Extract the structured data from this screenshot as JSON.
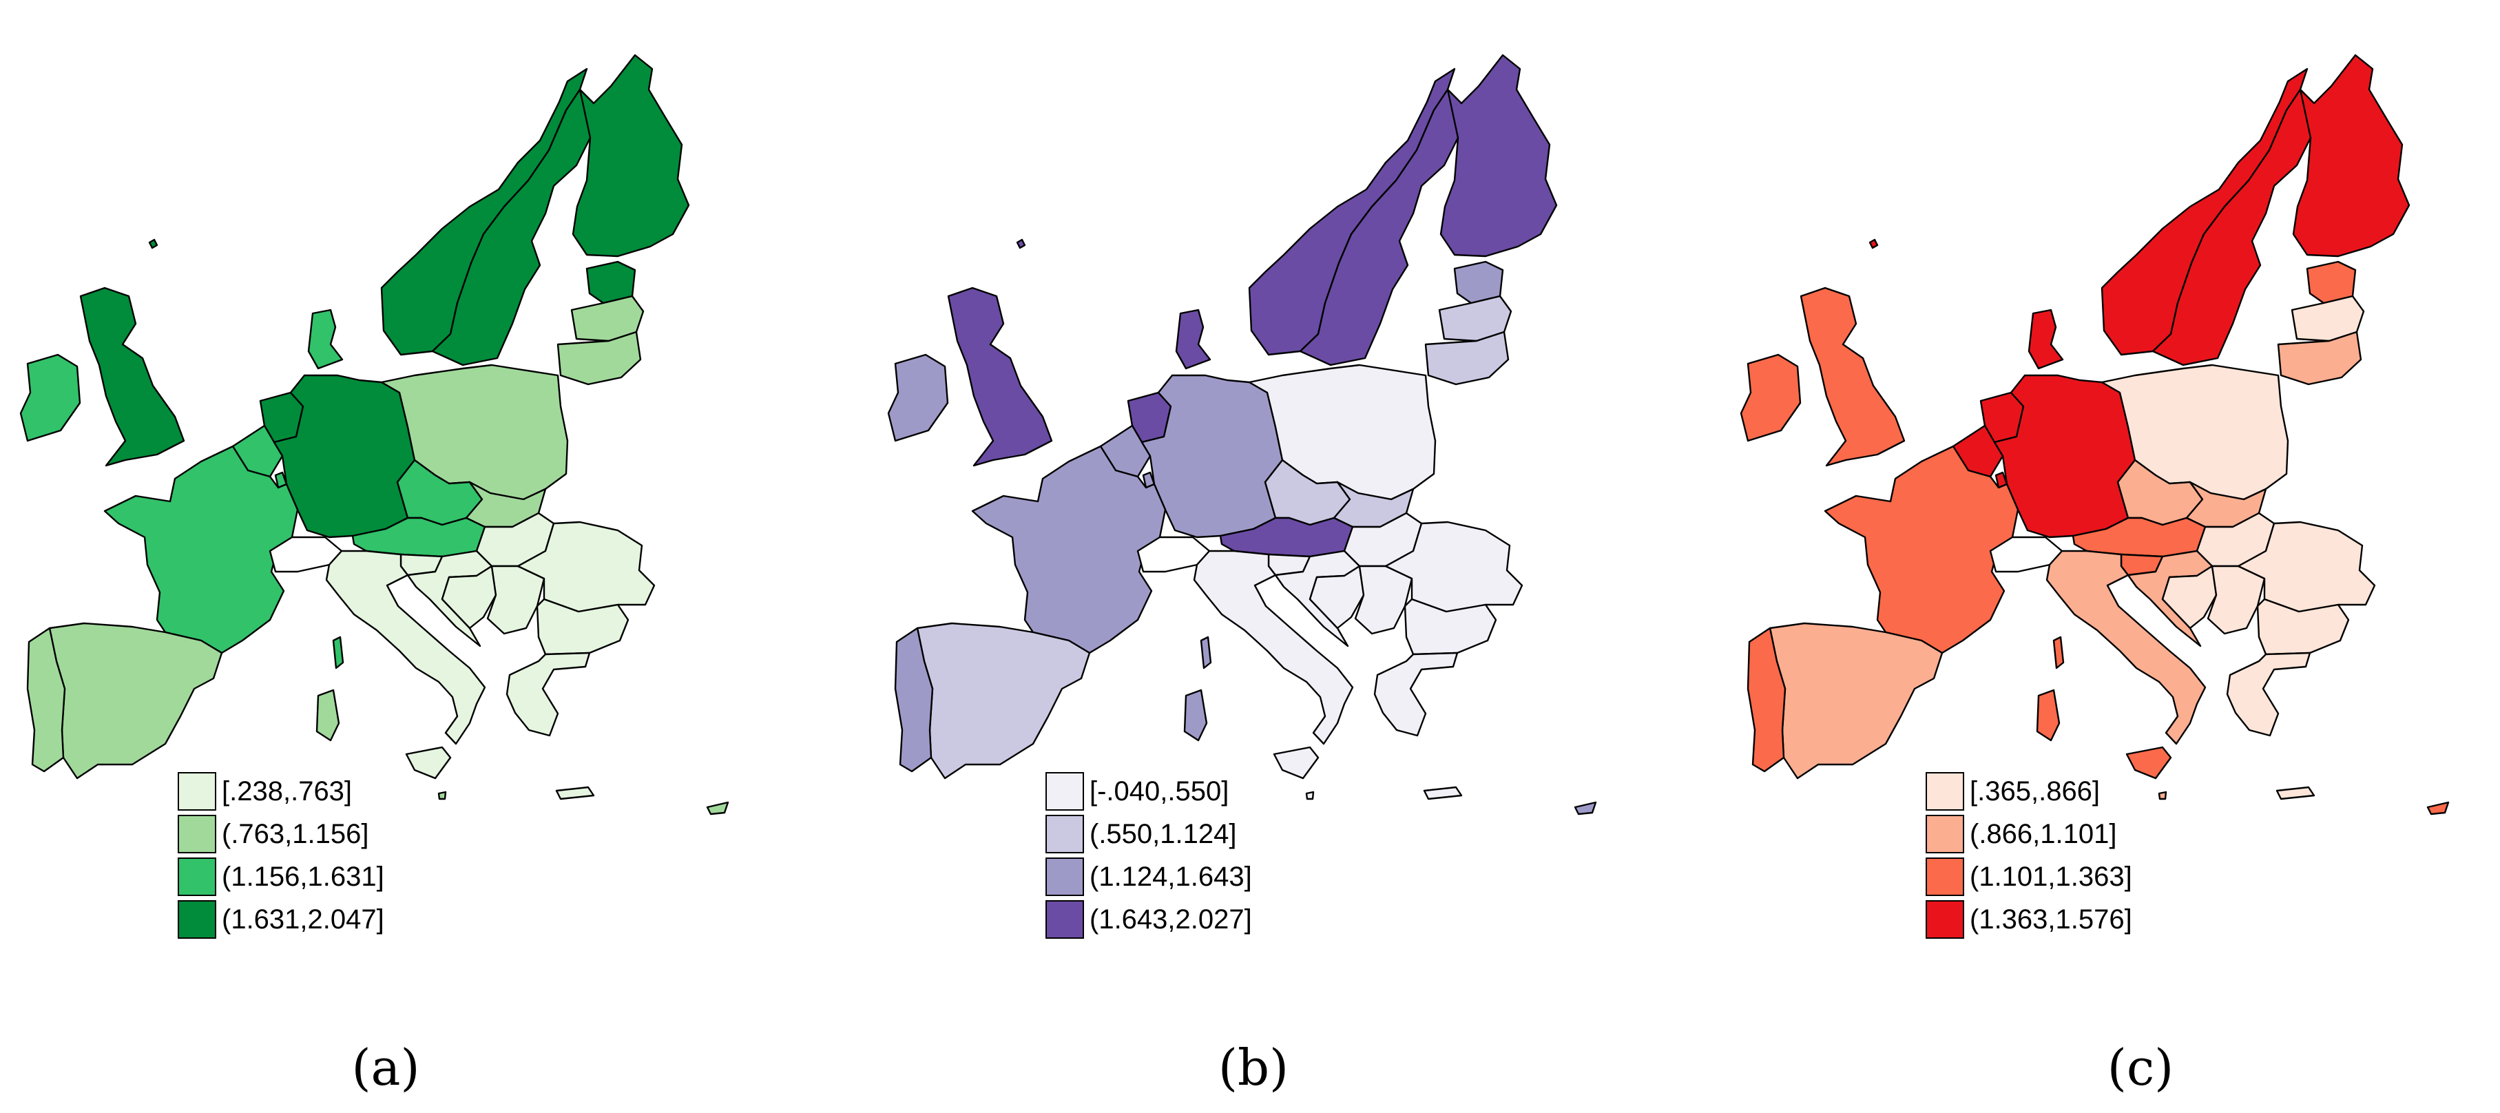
{
  "panels": [
    {
      "caption": "(a)",
      "legend": [
        {
          "label": "[.238,.763]",
          "color": "#e5f5e0"
        },
        {
          "label": "(.763,1.156]",
          "color": "#a1d99b"
        },
        {
          "label": "(1.156,1.631]",
          "color": "#31c26a"
        },
        {
          "label": "(1.631,2.047]",
          "color": "#008c3a"
        }
      ],
      "countries": {
        "iceland": 4,
        "ireland": 3,
        "uk": 4,
        "norway": 4,
        "sweden": 4,
        "finland": 4,
        "estonia": 4,
        "latvia": 2,
        "lithuania": 2,
        "denmark": 3,
        "netherlands": 4,
        "belgium": 3,
        "luxembourg": 3,
        "germany": 4,
        "poland": 2,
        "czechia": 3,
        "slovakia": 2,
        "austria": 3,
        "hungary": 1,
        "slovenia": 1,
        "croatia": 1,
        "bosnia": 1,
        "serbia": 1,
        "romania": 1,
        "bulgaria": 1,
        "greece": 1,
        "cyprus": 2,
        "france": 3,
        "switzerland": 0,
        "italy": 1,
        "sicily": 1,
        "sardinia": 2,
        "corsica": 3,
        "spain": 2,
        "portugal": 2,
        "malta": 2,
        "crete": 1
      }
    },
    {
      "caption": "(b)",
      "legend": [
        {
          "label": "[-.040,.550]",
          "color": "#f2f0f7"
        },
        {
          "label": "(.550,1.124]",
          "color": "#cbc9e2"
        },
        {
          "label": "(1.124,1.643]",
          "color": "#9e9ac8"
        },
        {
          "label": "(1.643,2.027]",
          "color": "#6a4ca4"
        }
      ],
      "countries": {
        "iceland": 4,
        "ireland": 3,
        "uk": 4,
        "norway": 4,
        "sweden": 4,
        "finland": 4,
        "estonia": 3,
        "latvia": 2,
        "lithuania": 2,
        "denmark": 4,
        "netherlands": 4,
        "belgium": 3,
        "luxembourg": 3,
        "germany": 3,
        "poland": 1,
        "czechia": 2,
        "slovakia": 2,
        "austria": 4,
        "hungary": 1,
        "slovenia": 1,
        "croatia": 1,
        "bosnia": 1,
        "serbia": 1,
        "romania": 1,
        "bulgaria": 1,
        "greece": 1,
        "cyprus": 3,
        "france": 3,
        "switzerland": 0,
        "italy": 1,
        "sicily": 1,
        "sardinia": 3,
        "corsica": 3,
        "spain": 2,
        "portugal": 3,
        "malta": 1,
        "crete": 1
      }
    },
    {
      "caption": "(c)",
      "legend": [
        {
          "label": "[.365,.866]",
          "color": "#fee5d9"
        },
        {
          "label": "(.866,1.101]",
          "color": "#fcae91"
        },
        {
          "label": "(1.101,1.363]",
          "color": "#fb6a4a"
        },
        {
          "label": "(1.363,1.576]",
          "color": "#e9141b"
        }
      ],
      "countries": {
        "iceland": 4,
        "ireland": 3,
        "uk": 3,
        "norway": 4,
        "sweden": 4,
        "finland": 4,
        "estonia": 3,
        "latvia": 1,
        "lithuania": 2,
        "denmark": 4,
        "netherlands": 4,
        "belgium": 4,
        "luxembourg": 4,
        "germany": 4,
        "poland": 1,
        "czechia": 2,
        "slovakia": 2,
        "austria": 3,
        "hungary": 1,
        "slovenia": 3,
        "croatia": 2,
        "bosnia": 1,
        "serbia": 1,
        "romania": 1,
        "bulgaria": 1,
        "greece": 1,
        "cyprus": 3,
        "france": 3,
        "switzerland": 0,
        "italy": 2,
        "sicily": 3,
        "sardinia": 3,
        "corsica": 3,
        "spain": 2,
        "portugal": 3,
        "malta": 2,
        "crete": 1
      }
    }
  ]
}
